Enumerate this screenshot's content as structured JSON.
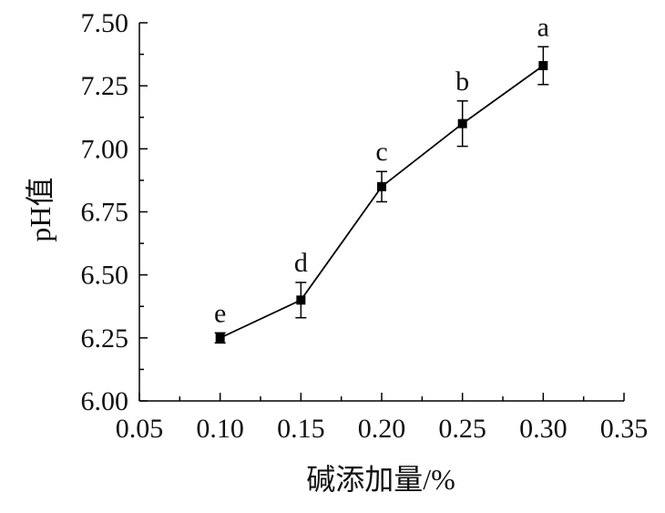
{
  "chart_data": {
    "type": "line",
    "title": "",
    "xlabel": "碱添加量/%",
    "ylabel": "pH值",
    "xlim": [
      0.05,
      0.35
    ],
    "ylim": [
      6.0,
      7.5
    ],
    "x_ticks": [
      "0.05",
      "0.10",
      "0.15",
      "0.20",
      "0.25",
      "0.30",
      "0.35"
    ],
    "y_ticks": [
      "6.00",
      "6.25",
      "6.50",
      "6.75",
      "7.00",
      "7.25",
      "7.50"
    ],
    "grid": false,
    "legend": "none",
    "series": [
      {
        "x": [
          0.1,
          0.15,
          0.2,
          0.25,
          0.3
        ],
        "y": [
          6.25,
          6.4,
          6.85,
          7.1,
          7.33
        ],
        "error": [
          0.02,
          0.07,
          0.06,
          0.09,
          0.075
        ],
        "labels": [
          "e",
          "d",
          "c",
          "b",
          "a"
        ],
        "color": "#000000"
      }
    ]
  }
}
